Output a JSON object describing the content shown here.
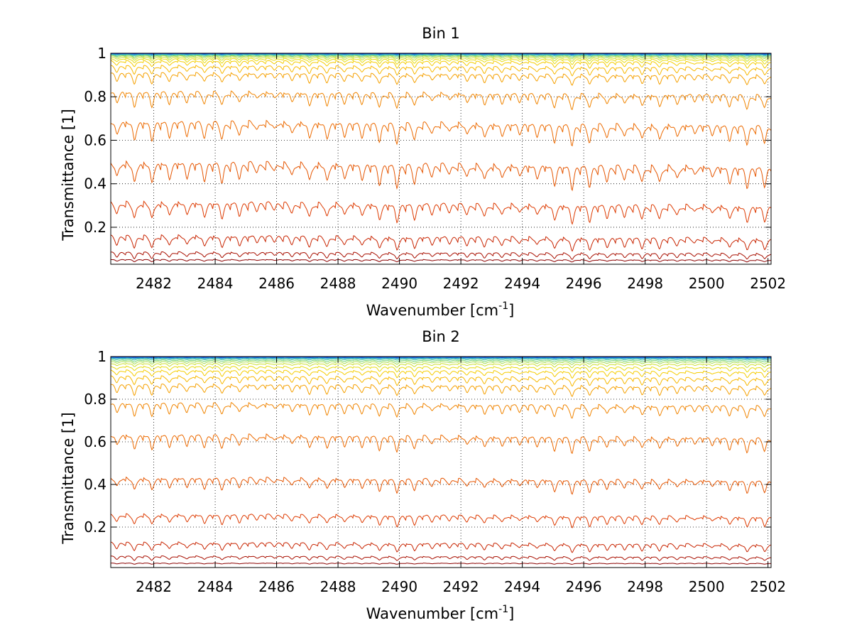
{
  "figure": {
    "panels": [
      {
        "title": "Bin 1",
        "xlabel_main": "Wavenumber [cm",
        "xlabel_sup": "-1",
        "xlabel_close": "]",
        "ylabel": "Transmittance [1]"
      },
      {
        "title": "Bin 2",
        "xlabel_main": "Wavenumber [cm",
        "xlabel_sup": "-1",
        "xlabel_close": "]",
        "ylabel": "Transmittance [1]"
      }
    ]
  },
  "chart_data": [
    {
      "type": "line",
      "title": "Bin 1",
      "xlabel": "Wavenumber [cm-1]",
      "ylabel": "Transmittance [1]",
      "xlim": [
        2480.6,
        2502.1
      ],
      "ylim": [
        0.03,
        1.0
      ],
      "xticks": [
        "2482",
        "2484",
        "2486",
        "2488",
        "2490",
        "2492",
        "2494",
        "2496",
        "2498",
        "2500",
        "2502"
      ],
      "yticks": [
        "0.2",
        "0.4",
        "0.6",
        "0.8",
        "1"
      ],
      "grid": true,
      "line_spacing_cm-1": 0.57,
      "series_baselines": [
        0.05,
        0.08,
        0.15,
        0.3,
        0.48,
        0.67,
        0.81,
        0.9,
        0.935,
        0.96,
        0.972,
        0.98,
        0.986,
        0.99,
        0.993,
        0.995,
        0.997,
        0.998,
        0.999
      ],
      "series_dip_depth": [
        0.01,
        0.03,
        0.06,
        0.08,
        0.1,
        0.09,
        0.07,
        0.05,
        0.04,
        0.03,
        0.022,
        0.016,
        0.012,
        0.009,
        0.006,
        0.004,
        0.003,
        0.002,
        0.001
      ],
      "series_colors": [
        "#8b0000",
        "#a80f00",
        "#c82400",
        "#dd3a00",
        "#e55500",
        "#ec6a00",
        "#f08400",
        "#f5a000",
        "#f8b800",
        "#f5cc00",
        "#e8dc10",
        "#cde030",
        "#a6dc50",
        "#7cd478",
        "#52c8a0",
        "#30b4c6",
        "#1a8fe0",
        "#0f5fe0",
        "#0a2ccc"
      ]
    },
    {
      "type": "line",
      "title": "Bin 2",
      "xlabel": "Wavenumber [cm-1]",
      "ylabel": "Transmittance [1]",
      "xlim": [
        2480.6,
        2502.1
      ],
      "ylim": [
        0.01,
        1.0
      ],
      "xticks": [
        "2482",
        "2484",
        "2486",
        "2488",
        "2490",
        "2492",
        "2494",
        "2496",
        "2498",
        "2500",
        "2502"
      ],
      "yticks": [
        "0.2",
        "0.4",
        "0.6",
        "0.8",
        "1"
      ],
      "grid": true,
      "line_spacing_cm-1": 0.57,
      "series_baselines": [
        0.03,
        0.06,
        0.12,
        0.25,
        0.42,
        0.62,
        0.77,
        0.86,
        0.9,
        0.93,
        0.95,
        0.965,
        0.975,
        0.982,
        0.988,
        0.992,
        0.995,
        0.997,
        0.999
      ],
      "series_dip_depth": [
        0.005,
        0.02,
        0.04,
        0.05,
        0.06,
        0.07,
        0.06,
        0.05,
        0.04,
        0.03,
        0.022,
        0.016,
        0.012,
        0.009,
        0.006,
        0.004,
        0.003,
        0.002,
        0.001
      ],
      "series_colors": [
        "#8b0000",
        "#a80f00",
        "#c82400",
        "#dd3a00",
        "#e55500",
        "#ec6a00",
        "#f08400",
        "#f5a000",
        "#f8b800",
        "#f5cc00",
        "#e8dc10",
        "#cde030",
        "#a6dc50",
        "#7cd478",
        "#52c8a0",
        "#30b4c6",
        "#1a8fe0",
        "#0f5fe0",
        "#0a2ccc"
      ]
    }
  ]
}
